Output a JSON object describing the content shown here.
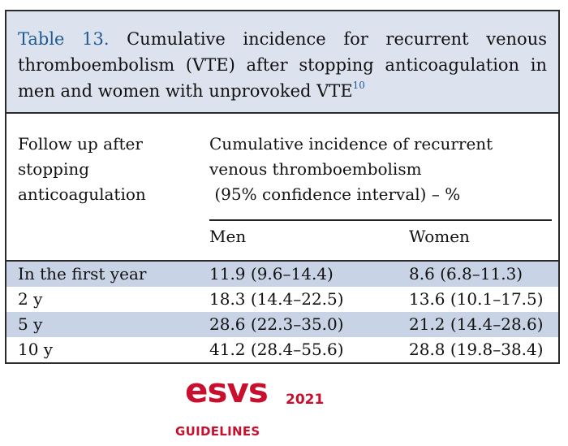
{
  "caption": {
    "label": "Table 13.",
    "text": "Cumulative incidence for recurrent venous thromboembolism (VTE) after stopping anticoagulation in men and women with unprovoked VTE",
    "ref": "10"
  },
  "header": {
    "col1_lines": [
      "Follow up after",
      "stopping",
      "anticoagulation"
    ],
    "col2_lines": [
      "Cumulative incidence of recurrent",
      "venous thromboembolism",
      " (95% confidence interval) – %"
    ],
    "men": "Men",
    "women": "Women"
  },
  "rows": [
    {
      "period": "In the first year",
      "men": "11.9 (9.6–14.4)",
      "women": "8.6 (6.8–11.3)"
    },
    {
      "period": "2 y",
      "men": "18.3 (14.4–22.5)",
      "women": "13.6 (10.1–17.5)"
    },
    {
      "period": "5 y",
      "men": "28.6 (22.3–35.0)",
      "women": "21.2 (14.4–28.6)"
    },
    {
      "period": "10 y",
      "men": "41.2 (28.4–55.6)",
      "women": "28.8 (19.8–38.4)"
    }
  ],
  "logo": {
    "brand": "esvs",
    "year": "2021",
    "tagline": "GUIDELINES",
    "color": "#c8102e"
  },
  "colors": {
    "caption_bg": "#dde3ee",
    "shade_row": "#c9d3e6",
    "accent_blue": "#1f5a93"
  }
}
